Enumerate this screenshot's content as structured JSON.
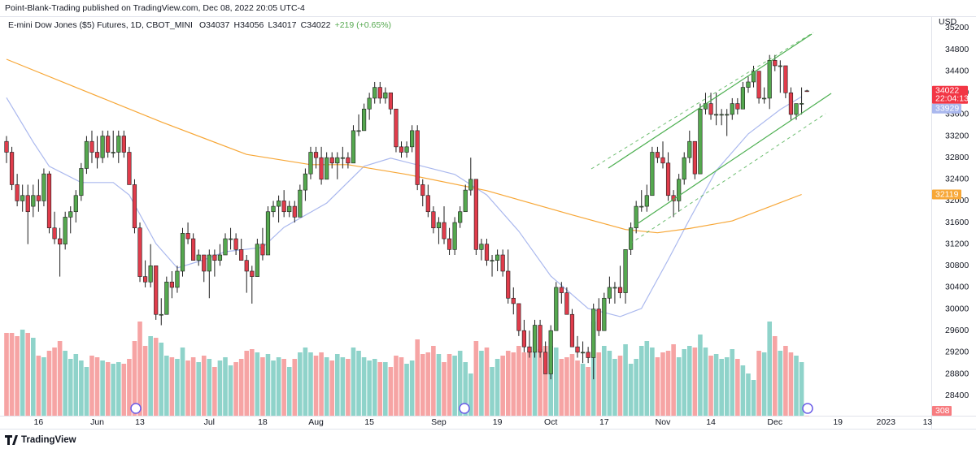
{
  "chart_data": {
    "type": "candlestick",
    "header": "Point-Blank-Trading published on TradingView.com, Dec 08, 2022 20:05 UTC-4",
    "legend_title": "E-mini Dow Jones ($5) Futures, 1D, CBOT_MINI",
    "legend_values": [
      "O34037",
      "H34056",
      "L34017",
      "C34022",
      "+219 (+0.65%)"
    ],
    "currency": "USD",
    "countdown": "22:04:13",
    "footer": "TradingView",
    "up_color": "#55a84f",
    "down_color": "#e03c4b",
    "last_price_color": "#f23645",
    "grid": false,
    "xlim": [
      -1.22,
      173.3
    ],
    "xticks": [
      {
        "value": 6,
        "label": "16"
      },
      {
        "value": 17,
        "label": "Jun"
      },
      {
        "value": 25,
        "label": "13"
      },
      {
        "value": 38,
        "label": "Jul"
      },
      {
        "value": 48,
        "label": "18"
      },
      {
        "value": 58,
        "label": "Aug"
      },
      {
        "value": 68,
        "label": "15"
      },
      {
        "value": 81,
        "label": "Sep"
      },
      {
        "value": 92,
        "label": "19"
      },
      {
        "value": 102,
        "label": "Oct"
      },
      {
        "value": 112,
        "label": "17"
      },
      {
        "value": 123,
        "label": "Nov"
      },
      {
        "value": 132,
        "label": "14"
      },
      {
        "value": 144,
        "label": "Dec"
      },
      {
        "value": 155.8,
        "label": "19"
      },
      {
        "value": 164.8,
        "label": "2023"
      },
      {
        "value": 172.6,
        "label": "13"
      }
    ],
    "ylim": [
      28026,
      35386
    ],
    "yticks": [
      28400,
      28800,
      29200,
      29600,
      30000,
      30400,
      30800,
      31200,
      31600,
      32000,
      32400,
      32800,
      33200,
      33600,
      34000,
      34400,
      34800,
      35200
    ],
    "candles": {
      "open": [
        33100,
        32900,
        32300,
        32000,
        32100,
        31900,
        32100,
        32000,
        32500,
        31500,
        31300,
        31200,
        31700,
        31800,
        32100,
        32600,
        33100,
        32900,
        32800,
        33200,
        32900,
        32900,
        33200,
        32900,
        32300,
        31500,
        30600,
        30500,
        30800,
        29900,
        29900,
        30500,
        30400,
        30700,
        31400,
        31300,
        30900,
        31000,
        30700,
        31000,
        30900,
        31000,
        31300,
        31300,
        31100,
        30900,
        30700,
        30600,
        31200,
        31000,
        31800,
        31900,
        32000,
        31800,
        31900,
        31700,
        32200,
        32500,
        32900,
        32800,
        32400,
        32800,
        32700,
        32800,
        32800,
        32700,
        33300,
        33300,
        33700,
        33900,
        34100,
        33900,
        34000,
        33700,
        33000,
        32900,
        33000,
        33300,
        32300,
        32100,
        31800,
        31500,
        31600,
        31300,
        31100,
        31600,
        31800,
        32200,
        32400,
        31100,
        31200,
        30900,
        30900,
        31000,
        30700,
        30200,
        30100,
        29600,
        29300,
        29200,
        29700,
        29200,
        28800,
        29600,
        30400,
        30300,
        29900,
        29300,
        29200,
        29200,
        29100,
        30000,
        29600,
        30200,
        30400,
        30400,
        30300,
        31100,
        31500,
        31900,
        31900,
        32100,
        32900,
        32800,
        32700,
        32100,
        32000,
        32400,
        32800,
        33100,
        32500,
        33700,
        33800,
        33600,
        33600,
        33600,
        33600,
        33800,
        33700,
        34100,
        34200,
        34400,
        33900,
        33900,
        34600,
        34500,
        34500,
        34000,
        33600,
        33800,
        34037
      ],
      "high": [
        33200,
        33000,
        32500,
        32300,
        32300,
        32300,
        32400,
        32600,
        32550,
        31800,
        31500,
        31800,
        31900,
        32200,
        32700,
        33200,
        33300,
        33200,
        33300,
        33300,
        33300,
        33300,
        33300,
        33000,
        32400,
        31600,
        30900,
        31200,
        30800,
        30200,
        30600,
        30700,
        30800,
        31500,
        31600,
        31400,
        31100,
        31000,
        31100,
        31100,
        31200,
        31400,
        31500,
        31400,
        31300,
        31000,
        30800,
        31300,
        31500,
        31900,
        32000,
        32100,
        32200,
        32000,
        32000,
        32300,
        32600,
        33000,
        33000,
        33000,
        32900,
        32900,
        32900,
        33000,
        32900,
        33400,
        33600,
        33800,
        34000,
        34200,
        34200,
        34100,
        34000,
        33700,
        33100,
        33100,
        33400,
        33400,
        32400,
        32300,
        31900,
        31700,
        31900,
        31500,
        31700,
        31900,
        32300,
        32800,
        32400,
        31300,
        31300,
        31000,
        31100,
        31100,
        31100,
        30400,
        30100,
        29800,
        29600,
        29800,
        29800,
        29400,
        29700,
        30500,
        30500,
        30400,
        30000,
        29500,
        29400,
        29300,
        30100,
        30200,
        30300,
        30600,
        30500,
        30800,
        31100,
        31600,
        32000,
        32200,
        32300,
        33000,
        33000,
        33100,
        32900,
        32200,
        32500,
        32900,
        33300,
        33100,
        33800,
        34000,
        34000,
        34000,
        33700,
        33700,
        33900,
        33900,
        34200,
        34300,
        34500,
        34400,
        34100,
        34700,
        34700,
        34600,
        34500,
        34100,
        33800,
        34100,
        34056
      ],
      "low": [
        32700,
        32200,
        31900,
        31800,
        31200,
        31700,
        31800,
        31900,
        31400,
        31200,
        30600,
        31100,
        31400,
        31600,
        32000,
        32500,
        32700,
        32600,
        32700,
        32800,
        32800,
        32700,
        32800,
        32300,
        31400,
        30500,
        30400,
        30400,
        29800,
        29700,
        29900,
        30200,
        30300,
        30600,
        31200,
        30900,
        30800,
        30500,
        30200,
        30600,
        30800,
        31000,
        31100,
        31000,
        30900,
        30300,
        30100,
        30600,
        30900,
        31000,
        31700,
        31600,
        31700,
        31700,
        31600,
        31700,
        32000,
        32400,
        32600,
        32300,
        32400,
        32600,
        32400,
        32600,
        32600,
        32700,
        33200,
        33300,
        33500,
        33800,
        33800,
        33800,
        33600,
        32900,
        32800,
        32800,
        32900,
        32200,
        31900,
        31700,
        31400,
        31200,
        31200,
        31000,
        31000,
        31500,
        31800,
        32100,
        31000,
        30900,
        30800,
        30600,
        30700,
        30600,
        30100,
        29900,
        29500,
        29200,
        29100,
        29100,
        29100,
        28800,
        28700,
        29600,
        30100,
        29900,
        29300,
        29100,
        29000,
        29000,
        28700,
        29500,
        29600,
        30100,
        30100,
        30200,
        30100,
        31000,
        31400,
        31800,
        31800,
        32100,
        32700,
        32600,
        32000,
        31700,
        31800,
        32300,
        32700,
        32400,
        32500,
        33600,
        33500,
        33400,
        33400,
        33200,
        33500,
        33600,
        33700,
        34000,
        34100,
        33800,
        33800,
        33700,
        34400,
        34000,
        33900,
        33500,
        33500,
        33600,
        34017
      ],
      "close": [
        32900,
        32300,
        32000,
        32100,
        31800,
        32100,
        32000,
        32500,
        31500,
        31300,
        31200,
        31700,
        31800,
        32100,
        32600,
        33100,
        32900,
        32800,
        33200,
        32900,
        32900,
        33200,
        32900,
        32300,
        31500,
        30600,
        30500,
        30800,
        29900,
        29900,
        30500,
        30400,
        30700,
        31400,
        31300,
        30900,
        31000,
        30700,
        31000,
        30900,
        31000,
        31300,
        31300,
        31100,
        30900,
        30700,
        30600,
        31200,
        31000,
        31800,
        31900,
        32000,
        31800,
        31900,
        31700,
        32200,
        32500,
        32900,
        32800,
        32400,
        32800,
        32700,
        32800,
        32800,
        32700,
        33300,
        33300,
        33700,
        33900,
        34100,
        33900,
        34000,
        33700,
        33000,
        32900,
        33000,
        33300,
        32300,
        32100,
        31800,
        31500,
        31600,
        31300,
        31100,
        31600,
        31800,
        32200,
        32400,
        31100,
        31200,
        30900,
        30900,
        31000,
        30700,
        30200,
        30100,
        29600,
        29300,
        29200,
        29700,
        29200,
        28800,
        29600,
        30400,
        30300,
        29900,
        29300,
        29200,
        29200,
        29100,
        30000,
        29600,
        30200,
        30400,
        30400,
        30300,
        31100,
        31500,
        31900,
        31900,
        32100,
        32900,
        32800,
        32700,
        32100,
        32000,
        32400,
        32800,
        33100,
        32500,
        33700,
        33800,
        33600,
        33600,
        33600,
        33600,
        33800,
        33700,
        34100,
        34200,
        34400,
        33900,
        33900,
        34600,
        34500,
        34500,
        34000,
        33600,
        33800,
        33803,
        34022
      ]
    },
    "volume": {
      "up_color": "#8fd3ca",
      "down_color": "#f6a4a4",
      "tag_color": "#f77c80",
      "ylim": [
        0,
        300000
      ],
      "values": [
        255000,
        255000,
        245000,
        265000,
        255000,
        240000,
        185000,
        180000,
        200000,
        210000,
        230000,
        200000,
        175000,
        190000,
        170000,
        150000,
        185000,
        180000,
        170000,
        165000,
        160000,
        165000,
        160000,
        175000,
        230000,
        290000,
        215000,
        245000,
        240000,
        225000,
        185000,
        180000,
        175000,
        210000,
        170000,
        180000,
        165000,
        185000,
        175000,
        150000,
        170000,
        180000,
        155000,
        165000,
        175000,
        200000,
        205000,
        195000,
        180000,
        190000,
        170000,
        180000,
        175000,
        150000,
        175000,
        195000,
        210000,
        195000,
        185000,
        195000,
        180000,
        170000,
        190000,
        180000,
        175000,
        210000,
        200000,
        180000,
        170000,
        175000,
        165000,
        165000,
        150000,
        185000,
        180000,
        160000,
        170000,
        235000,
        190000,
        195000,
        215000,
        190000,
        165000,
        190000,
        185000,
        200000,
        165000,
        130000,
        230000,
        200000,
        210000,
        150000,
        175000,
        185000,
        200000,
        195000,
        215000,
        195000,
        200000,
        195000,
        205000,
        215000,
        215000,
        210000,
        175000,
        180000,
        190000,
        170000,
        160000,
        150000,
        290000,
        195000,
        215000,
        200000,
        175000,
        185000,
        220000,
        160000,
        175000,
        215000,
        230000,
        210000,
        180000,
        195000,
        200000,
        220000,
        180000,
        205000,
        215000,
        210000,
        250000,
        210000,
        185000,
        190000,
        175000,
        180000,
        205000,
        175000,
        155000,
        130000,
        110000,
        200000,
        195000,
        290000,
        245000,
        200000,
        215000,
        195000,
        185000,
        165000,
        308
      ]
    },
    "lines": [
      {
        "color": "#aab8ee",
        "x": [
          0,
          5,
          8,
          14,
          20,
          23,
          28,
          32,
          37,
          41,
          48,
          52,
          60,
          67,
          72,
          78,
          84,
          90,
          96,
          102,
          109,
          115,
          119,
          124,
          128,
          133,
          139,
          145,
          149
        ],
        "values": [
          33910,
          33090,
          32640,
          32340,
          32340,
          32110,
          31210,
          30760,
          30910,
          31060,
          31140,
          31510,
          31960,
          32640,
          32790,
          32640,
          32490,
          32110,
          31440,
          30610,
          30010,
          29860,
          30010,
          30910,
          31660,
          32560,
          33240,
          33690,
          33929
        ]
      },
      {
        "color": "#f7a737",
        "x": [
          0,
          14,
          29,
          45,
          57,
          64,
          75,
          90,
          106,
          116,
          122,
          128,
          136,
          144,
          149
        ],
        "values": [
          34620,
          34060,
          33460,
          32860,
          32670,
          32670,
          32490,
          32190,
          31740,
          31470,
          31410,
          31490,
          31630,
          31930,
          32119
        ]
      }
    ]
  }
}
